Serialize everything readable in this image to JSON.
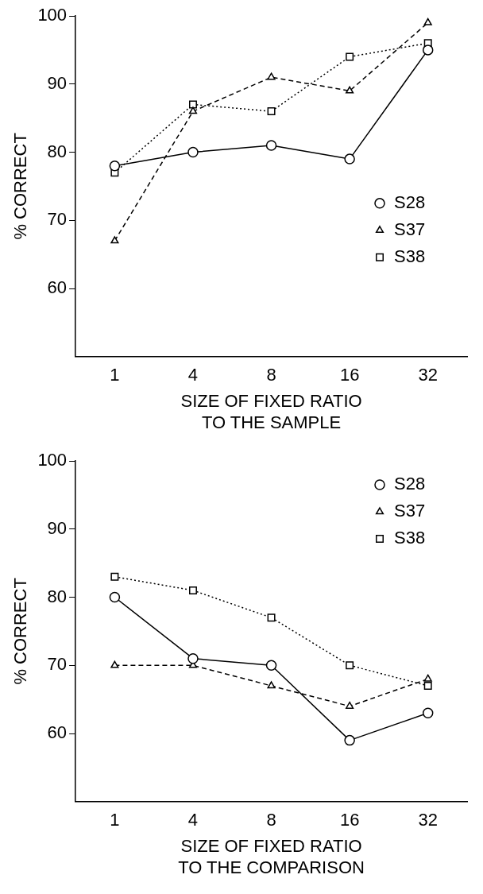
{
  "chart_data": [
    {
      "type": "line",
      "xlabel": "SIZE OF FIXED RATIO\nTO THE SAMPLE",
      "ylabel": "% CORRECT",
      "categories": [
        "1",
        "4",
        "8",
        "16",
        "32"
      ],
      "ylim": [
        50,
        100
      ],
      "yticks": [
        60,
        70,
        80,
        90,
        100
      ],
      "grid": false,
      "legend": "right",
      "series": [
        {
          "name": "S28",
          "color": "#000000",
          "marker": "circle",
          "line_style": "solid",
          "values": [
            78,
            80,
            81,
            79,
            95
          ]
        },
        {
          "name": "S37",
          "color": "#000000",
          "marker": "triangle",
          "line_style": "dashed",
          "values": [
            67,
            86,
            91,
            89,
            99
          ]
        },
        {
          "name": "S38",
          "color": "#000000",
          "marker": "square",
          "line_style": "dotted",
          "values": [
            77,
            87,
            86,
            94,
            96
          ]
        }
      ]
    },
    {
      "type": "line",
      "xlabel": "SIZE OF FIXED RATIO\nTO THE COMPARISON",
      "ylabel": "% CORRECT",
      "categories": [
        "1",
        "4",
        "8",
        "16",
        "32"
      ],
      "ylim": [
        50,
        100
      ],
      "yticks": [
        60,
        70,
        80,
        90,
        100
      ],
      "grid": false,
      "legend": "top right",
      "series": [
        {
          "name": "S28",
          "color": "#000000",
          "marker": "circle",
          "line_style": "solid",
          "values": [
            80,
            71,
            70,
            59,
            63
          ]
        },
        {
          "name": "S37",
          "color": "#000000",
          "marker": "triangle",
          "line_style": "dashed",
          "values": [
            70,
            70,
            67,
            64,
            68
          ]
        },
        {
          "name": "S38",
          "color": "#000000",
          "marker": "square",
          "line_style": "dotted",
          "values": [
            83,
            81,
            77,
            70,
            67
          ]
        }
      ]
    }
  ]
}
